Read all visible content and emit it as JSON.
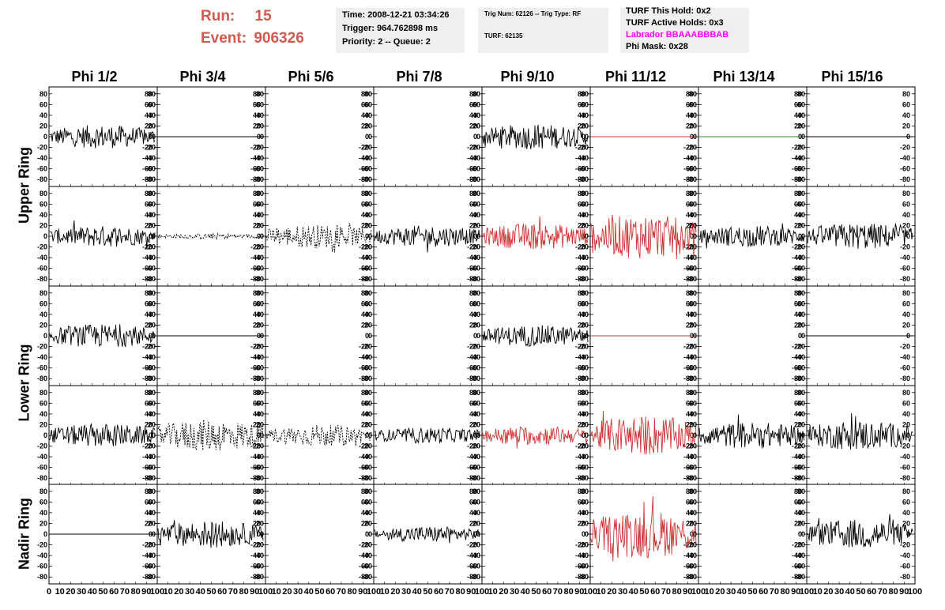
{
  "header": {
    "run_label": "Run:",
    "run_value": "15",
    "event_label": "Event:",
    "event_value": "906326",
    "time": "Time: 2008-12-21 03:34:26",
    "trigger": "Trigger: 964.762898 ms",
    "priority": "Priority: 2 -- Queue: 2",
    "trig_num": "Trig Num: 62126 -- Trig Type: RF",
    "turf": "TURF: 62135",
    "turf_this_hold": "TURF This Hold: 0x2",
    "turf_active_holds": "TURF Active Holds: 0x3",
    "labrador": "Labrador BBAAABBBAB",
    "phi_mask": "Phi Mask: 0x28",
    "labrador_color": "#ff00ff"
  },
  "chart_data": {
    "type": "line",
    "columns": [
      "Phi 1/2",
      "Phi 3/4",
      "Phi 5/6",
      "Phi 7/8",
      "Phi 9/10",
      "Phi 11/12",
      "Phi 13/14",
      "Phi 15/16"
    ],
    "rows": [
      "Upper Ring",
      "Lower Ring",
      "Nadir Ring"
    ],
    "ylim": [
      -90,
      90
    ],
    "yticks": [
      80,
      60,
      40,
      20,
      0,
      -20,
      -40,
      -60,
      -80
    ],
    "xlim": [
      0,
      100
    ],
    "xticks": [
      0,
      10,
      20,
      30,
      40,
      50,
      60,
      70,
      80,
      90,
      100
    ],
    "colors": {
      "normal": "#000000",
      "masked": "#cc3333",
      "green": "#338833"
    },
    "panels": [
      [
        {
          "style": "solid",
          "color": "normal",
          "amp": 22
        },
        {
          "style": "flat",
          "color": "normal"
        },
        {
          "style": "none"
        },
        {
          "style": "none"
        },
        {
          "style": "solid",
          "color": "normal",
          "amp": 24
        },
        {
          "style": "flat",
          "color": "masked"
        },
        {
          "style": "flat",
          "color": "green"
        },
        {
          "style": "flat",
          "color": "normal"
        }
      ],
      [
        {
          "style": "solid",
          "color": "normal",
          "amp": 20
        },
        {
          "style": "dash",
          "color": "normal",
          "amp": 5
        },
        {
          "style": "dash",
          "color": "normal",
          "amp": 22
        },
        {
          "style": "solid",
          "color": "normal",
          "amp": 20
        },
        {
          "style": "solid",
          "color": "masked",
          "amp": 25
        },
        {
          "style": "solid",
          "color": "masked",
          "amp": 42
        },
        {
          "style": "solid",
          "color": "normal",
          "amp": 20
        },
        {
          "style": "solid",
          "color": "normal",
          "amp": 25
        }
      ],
      [
        {
          "style": "solid",
          "color": "normal",
          "amp": 22
        },
        {
          "style": "flat",
          "color": "normal"
        },
        {
          "style": "none"
        },
        {
          "style": "none"
        },
        {
          "style": "solid",
          "color": "normal",
          "amp": 20
        },
        {
          "style": "flat",
          "color": "masked"
        },
        {
          "style": "none"
        },
        {
          "style": "flat",
          "color": "normal"
        }
      ],
      [
        {
          "style": "solid",
          "color": "normal",
          "amp": 22
        },
        {
          "style": "dash",
          "color": "normal",
          "amp": 30
        },
        {
          "style": "dash",
          "color": "normal",
          "amp": 20
        },
        {
          "style": "solid",
          "color": "normal",
          "amp": 15
        },
        {
          "style": "solid",
          "color": "masked",
          "amp": 18
        },
        {
          "style": "solid",
          "color": "masked",
          "amp": 38
        },
        {
          "style": "solid",
          "color": "normal",
          "amp": 25
        },
        {
          "style": "solid",
          "color": "normal",
          "amp": 28
        }
      ],
      [
        {
          "style": "flat",
          "color": "normal"
        },
        {
          "style": "solid",
          "color": "normal",
          "amp": 25
        },
        {
          "style": "none"
        },
        {
          "style": "solid",
          "color": "normal",
          "amp": 15
        },
        {
          "style": "none"
        },
        {
          "style": "solid",
          "color": "masked",
          "amp": 45
        },
        {
          "style": "none"
        },
        {
          "style": "solid",
          "color": "normal",
          "amp": 28
        }
      ]
    ]
  }
}
